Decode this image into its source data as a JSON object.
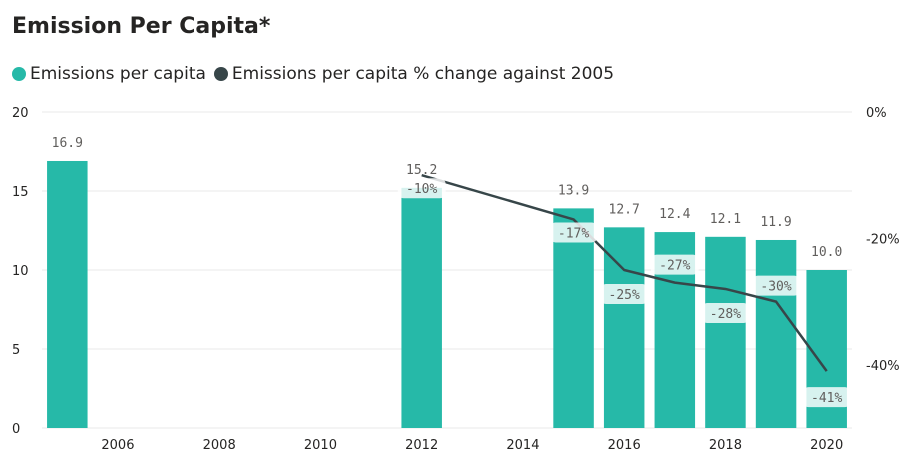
{
  "title": "Emission Per Capita*",
  "legend": [
    {
      "label": "Emissions per capita",
      "color": "#26b9a8"
    },
    {
      "label": "Emissions per capita % change against 2005",
      "color": "#374649"
    }
  ],
  "chart_data": {
    "type": "bar",
    "x": [
      2005,
      2012,
      2015,
      2016,
      2017,
      2018,
      2019,
      2020
    ],
    "series": [
      {
        "name": "Emissions per capita",
        "type": "bar",
        "axis": "left",
        "color": "#26b9a8",
        "values": [
          16.9,
          15.2,
          13.9,
          12.7,
          12.4,
          12.1,
          11.9,
          10.0
        ],
        "labels": [
          "16.9",
          "15.2",
          "13.9",
          "12.7",
          "12.4",
          "12.1",
          "11.9",
          "10.0"
        ]
      },
      {
        "name": "Emissions per capita % change against 2005",
        "type": "line",
        "axis": "right",
        "color": "#374649",
        "x": [
          2012,
          2015,
          2016,
          2017,
          2018,
          2019,
          2020
        ],
        "values": [
          -10,
          -17,
          -25,
          -27,
          -28,
          -30,
          -41
        ],
        "labels": [
          "-10%",
          "-17%",
          "-25%",
          "-27%",
          "-28%",
          "-30%",
          "-41%"
        ]
      }
    ],
    "x_ticks": [
      "2006",
      "2008",
      "2010",
      "2012",
      "2014",
      "2016",
      "2018",
      "2020"
    ],
    "y_left_ticks": [
      "0",
      "5",
      "10",
      "15",
      "20"
    ],
    "y_right_ticks": [
      "0%",
      "-20%",
      "-40%"
    ],
    "ylim_left": [
      0,
      20
    ],
    "ylim_right": [
      -50,
      0
    ],
    "xlim": [
      2004.5,
      2020.5
    ],
    "grid": true,
    "legend_position": "top-left"
  }
}
